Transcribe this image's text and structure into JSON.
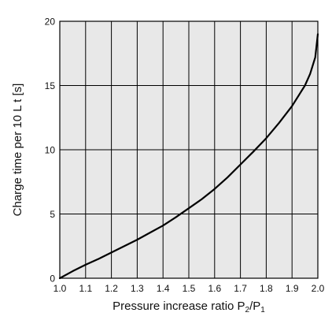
{
  "chart_data": {
    "type": "line",
    "title": "",
    "xlabel": "Pressure increase ratio P2/P1",
    "xlabel_parts": [
      {
        "text": "Pressure increase ratio P",
        "sub": false
      },
      {
        "text": "2",
        "sub": true
      },
      {
        "text": "/P",
        "sub": false
      },
      {
        "text": "1",
        "sub": true
      }
    ],
    "ylabel": "Charge time per 10 L t [s]",
    "xlim": [
      1.0,
      2.0
    ],
    "ylim": [
      0,
      20
    ],
    "x_ticks": [
      1.0,
      1.1,
      1.2,
      1.3,
      1.4,
      1.5,
      1.6,
      1.7,
      1.8,
      1.9,
      2.0
    ],
    "x_tick_labels": [
      "1.0",
      "1.1",
      "1.2",
      "1.3",
      "1.4",
      "1.5",
      "1.6",
      "1.7",
      "1.8",
      "1.9",
      "2.0"
    ],
    "y_ticks": [
      0,
      5,
      10,
      15,
      20
    ],
    "y_tick_labels": [
      "0",
      "5",
      "10",
      "15",
      "20"
    ],
    "grid": true,
    "colors": {
      "plot_background": "#e8e8e8",
      "grid": "#000000",
      "line": "#000000"
    },
    "series": [
      {
        "x": [
          1.0,
          1.05,
          1.1,
          1.15,
          1.2,
          1.25,
          1.3,
          1.35,
          1.4,
          1.45,
          1.5,
          1.55,
          1.6,
          1.65,
          1.7,
          1.75,
          1.8,
          1.85,
          1.9,
          1.95,
          1.97,
          1.99,
          2.0
        ],
        "values": [
          0,
          0.55,
          1.05,
          1.5,
          2.0,
          2.5,
          3.0,
          3.55,
          4.1,
          4.75,
          5.45,
          6.15,
          6.95,
          7.85,
          8.85,
          9.85,
          10.9,
          12.1,
          13.4,
          15.0,
          15.9,
          17.2,
          19.0
        ]
      }
    ]
  }
}
